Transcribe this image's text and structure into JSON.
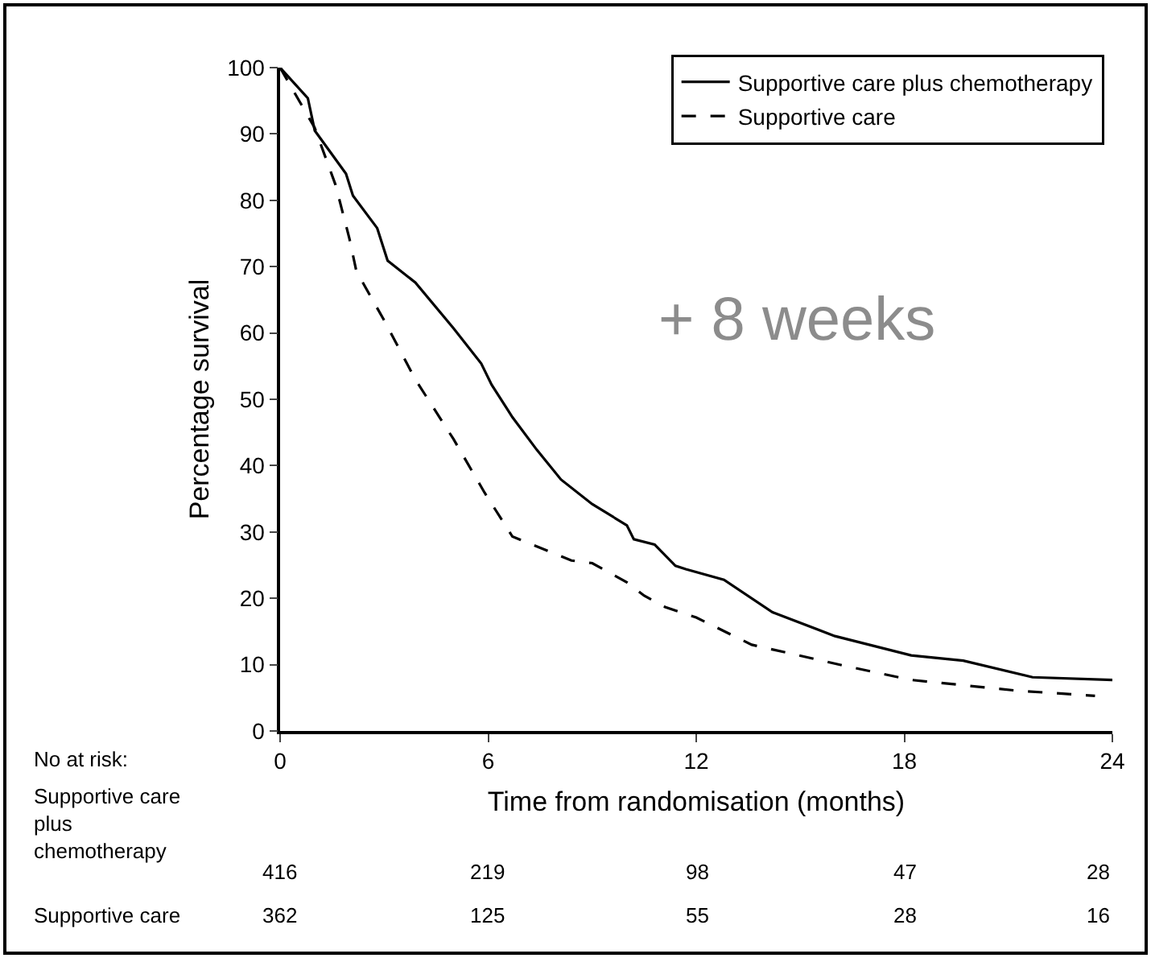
{
  "chart_data": {
    "type": "line",
    "xlabel": "Time from randomisation (months)",
    "ylabel": "Percentage survival",
    "xlim": [
      0,
      24
    ],
    "ylim": [
      0,
      100
    ],
    "xticks": [
      0,
      6,
      12,
      18,
      24
    ],
    "yticks": [
      0,
      10,
      20,
      30,
      40,
      50,
      60,
      70,
      80,
      90,
      100
    ],
    "grid": false,
    "legend": "top right",
    "series": [
      {
        "name": "Supportive care plus chemotherapy",
        "color": "#000000",
        "line_style": "solid",
        "x": [
          0,
          0.8,
          1,
          1.9,
          2.1,
          2.8,
          3.1,
          3.9,
          5,
          5.8,
          6.1,
          6.7,
          7.4,
          8.1,
          9,
          10,
          10.2,
          10.8,
          11.4,
          11.7,
          12.8,
          14.2,
          16,
          18.2,
          19.7,
          21.7,
          24
        ],
        "values": [
          100,
          95.4,
          90.5,
          84,
          80.7,
          75.8,
          70.9,
          67.6,
          60.7,
          55.4,
          52.2,
          47.3,
          42.4,
          37.9,
          34.2,
          31,
          28.9,
          28.1,
          24.9,
          24.4,
          22.8,
          17.9,
          14.3,
          11.4,
          10.6,
          8.1,
          7.7
        ]
      },
      {
        "name": "Supportive care",
        "color": "#000000",
        "line_style": "dashed",
        "x": [
          0,
          1,
          1.6,
          2,
          2.2,
          3,
          3.9,
          5,
          5.9,
          6.7,
          8.4,
          9,
          10,
          10.5,
          11.1,
          12,
          13.6,
          16.3,
          18.2,
          21.2,
          23.5
        ],
        "values": [
          100,
          90.9,
          82.3,
          74.2,
          69.3,
          61.9,
          53,
          44,
          35.9,
          29.3,
          25.7,
          25.3,
          22.4,
          20.4,
          18.7,
          17.1,
          13,
          9.8,
          7.7,
          6.1,
          5.3
        ]
      }
    ],
    "annotations": [
      "+ 8 weeks",
      "No at risk:",
      "Supportive care\nplus\nchemotherapy",
      "416",
      "219",
      "98",
      "47",
      "28",
      "Supportive care",
      "362",
      "125",
      "55",
      "28",
      "16"
    ]
  }
}
